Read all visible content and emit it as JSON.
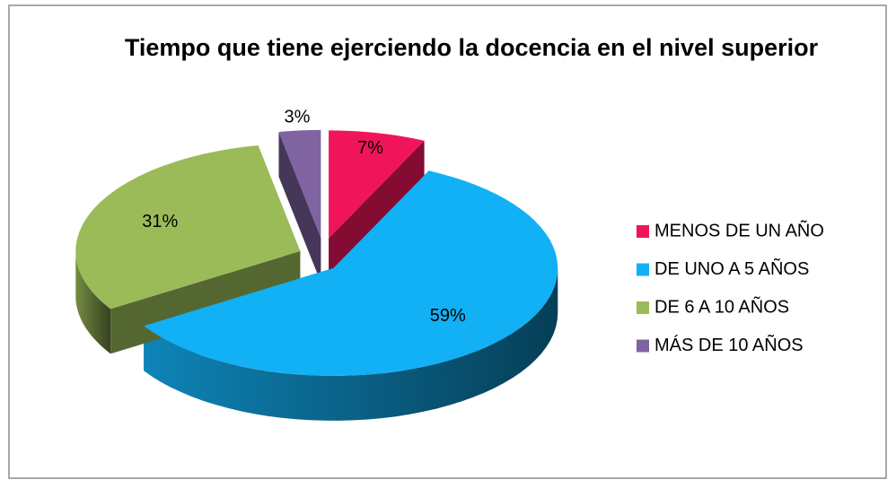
{
  "chart_data": {
    "type": "pie3d",
    "title": "Tiempo que tiene ejerciendo la docencia en el nivel superior",
    "categories": [
      "MENOS DE UN AÑO",
      "DE UNO A 5 AÑOS",
      "DE 6 A 10 AÑOS",
      "MÁS DE 10 AÑOS"
    ],
    "values": [
      7,
      59,
      31,
      3
    ],
    "value_labels": [
      "7%",
      "59%",
      "31%",
      "3%"
    ],
    "colors": [
      "#f0145a",
      "#12b0f5",
      "#9bbb59",
      "#8064a2"
    ],
    "legend": "right"
  }
}
